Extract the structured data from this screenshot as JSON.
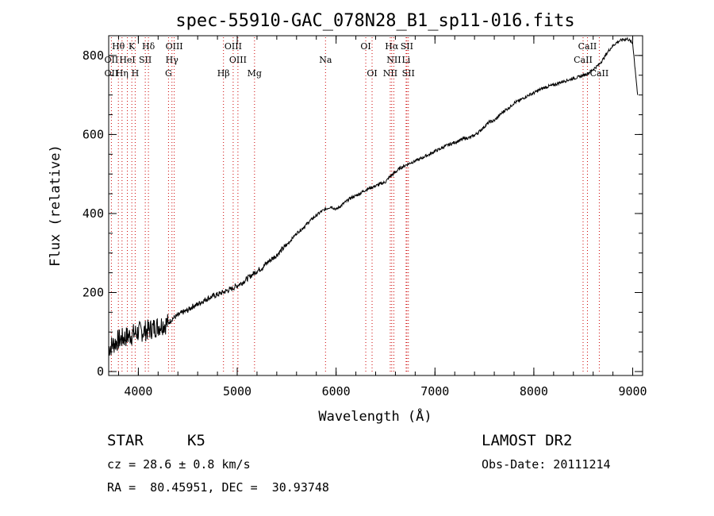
{
  "chart_data": {
    "type": "line",
    "title": "spec-55910-GAC_078N28_B1_sp11-016.fits",
    "xlabel": "Wavelength (Å)",
    "ylabel": "Flux (relative)",
    "xlim": [
      3700,
      9100
    ],
    "ylim": [
      -10,
      850
    ],
    "x_ticks": [
      4000,
      5000,
      6000,
      7000,
      8000,
      9000
    ],
    "y_ticks": [
      0,
      200,
      400,
      600,
      800
    ],
    "grid": false,
    "series": [
      {
        "x": [
          3700,
          3750,
          3800,
          3850,
          3900,
          3950,
          4000,
          4050,
          4100,
          4150,
          4200,
          4250,
          4300,
          4350,
          4400,
          4450,
          4500,
          4550,
          4600,
          4650,
          4700,
          4750,
          4800,
          4850,
          4900,
          4950,
          5000,
          5050,
          5100,
          5150,
          5200,
          5250,
          5300,
          5350,
          5400,
          5450,
          5500,
          5550,
          5600,
          5650,
          5700,
          5750,
          5800,
          5850,
          5900,
          5950,
          6000,
          6050,
          6100,
          6150,
          6200,
          6250,
          6300,
          6350,
          6400,
          6450,
          6500,
          6550,
          6600,
          6650,
          6700,
          6750,
          6800,
          6850,
          6900,
          6950,
          7000,
          7050,
          7100,
          7150,
          7200,
          7250,
          7300,
          7350,
          7400,
          7450,
          7500,
          7550,
          7600,
          7650,
          7700,
          7750,
          7800,
          7850,
          7900,
          7950,
          8000,
          8050,
          8100,
          8150,
          8200,
          8250,
          8300,
          8350,
          8400,
          8450,
          8500,
          8550,
          8600,
          8650,
          8700,
          8750,
          8800,
          8850,
          8900,
          8950,
          9000,
          9050
        ],
        "y": [
          60,
          70,
          80,
          85,
          90,
          95,
          100,
          102,
          105,
          110,
          115,
          120,
          122,
          135,
          142,
          150,
          155,
          165,
          170,
          178,
          185,
          190,
          195,
          200,
          205,
          210,
          218,
          225,
          235,
          245,
          255,
          262,
          275,
          285,
          295,
          308,
          320,
          335,
          350,
          360,
          372,
          385,
          395,
          405,
          412,
          418,
          410,
          420,
          430,
          440,
          445,
          452,
          460,
          465,
          470,
          475,
          480,
          495,
          505,
          515,
          522,
          528,
          533,
          538,
          545,
          550,
          558,
          563,
          570,
          575,
          580,
          585,
          590,
          592,
          598,
          608,
          620,
          632,
          635,
          648,
          660,
          668,
          680,
          685,
          693,
          700,
          705,
          712,
          718,
          722,
          725,
          730,
          735,
          738,
          742,
          745,
          750,
          755,
          765,
          775,
          790,
          810,
          825,
          835,
          840,
          842,
          830,
          700
        ]
      }
    ],
    "spectral_lines": [
      {
        "label": "Hθ",
        "x": 3798,
        "row": 1
      },
      {
        "label": "K",
        "x": 3934,
        "row": 1
      },
      {
        "label": "Hδ",
        "x": 4102,
        "row": 1
      },
      {
        "label": "OIII",
        "x": 4363,
        "row": 1
      },
      {
        "label": "OIII",
        "x": 4959,
        "row": 1
      },
      {
        "label": "OI",
        "x": 6300,
        "row": 1
      },
      {
        "label": "Hα",
        "x": 6563,
        "row": 1
      },
      {
        "label": "SII",
        "x": 6716,
        "row": 1
      },
      {
        "label": "CaII",
        "x": 8542,
        "row": 1
      },
      {
        "label": "OII",
        "x": 3727,
        "row": 2
      },
      {
        "label": "HeI",
        "x": 3889,
        "row": 2
      },
      {
        "label": "SII",
        "x": 4070,
        "row": 2
      },
      {
        "label": "Hγ",
        "x": 4340,
        "row": 2
      },
      {
        "label": "OIII",
        "x": 5007,
        "row": 2
      },
      {
        "label": "Na",
        "x": 5893,
        "row": 2
      },
      {
        "label": "NII",
        "x": 6584,
        "row": 2
      },
      {
        "label": "Li",
        "x": 6708,
        "row": 2
      },
      {
        "label": "CaII",
        "x": 8498,
        "row": 2
      },
      {
        "label": "OII",
        "x": 3727,
        "row": 3
      },
      {
        "label": "Hη",
        "x": 3835,
        "row": 3
      },
      {
        "label": "H",
        "x": 3968,
        "row": 3
      },
      {
        "label": "G",
        "x": 4305,
        "row": 3
      },
      {
        "label": "Hβ",
        "x": 4861,
        "row": 3
      },
      {
        "label": "Mg",
        "x": 5175,
        "row": 3
      },
      {
        "label": "OI",
        "x": 6364,
        "row": 3
      },
      {
        "label": "NII",
        "x": 6548,
        "row": 3
      },
      {
        "label": "SII",
        "x": 6731,
        "row": 3
      },
      {
        "label": "CaII",
        "x": 8662,
        "row": 3
      }
    ]
  },
  "info": {
    "object_class": "STAR",
    "subclass": "K5",
    "survey": "LAMOST DR2",
    "redshift": "cz = 28.6 ± 0.8 km/s",
    "obs_date": "Obs-Date: 20111214",
    "coords": "RA =  80.45951, DEC =  30.93748"
  }
}
